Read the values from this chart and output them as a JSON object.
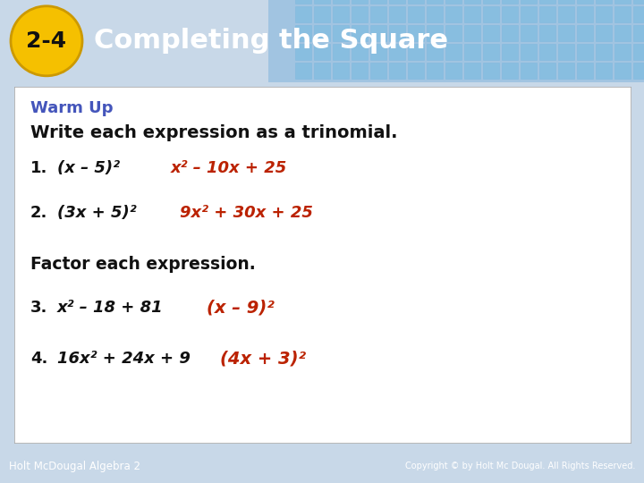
{
  "header_bg_color": "#3a78b8",
  "header_text_color": "#ffffff",
  "header_title": "Completing the Square",
  "header_label": "2-4",
  "header_label_bg": "#f5c000",
  "header_label_text": "#111111",
  "body_bg_color": "#c8d8e8",
  "card_bg_color": "#ffffff",
  "warm_up_color": "#4455bb",
  "black_text": "#111111",
  "red_answer": "#bb2200",
  "footer_bg": "#3a78b8",
  "footer_left": "Holt McDougal Algebra 2",
  "footer_right": "Copyright © by Holt Mc Dougal. All Rights Reserved."
}
